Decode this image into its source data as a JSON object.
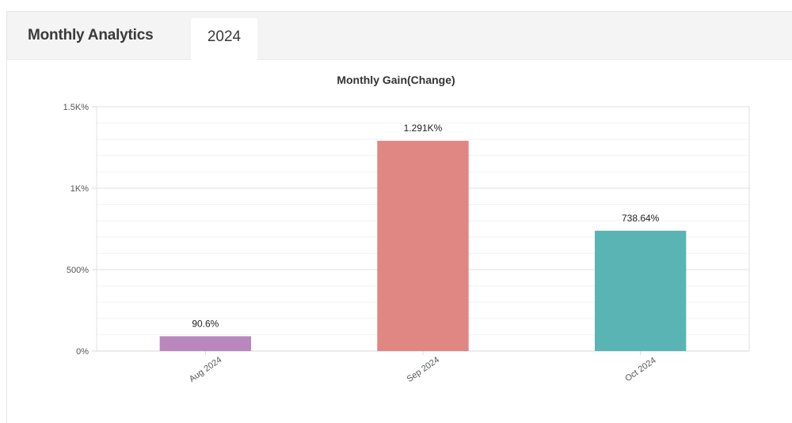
{
  "panel": {
    "title": "Monthly Analytics",
    "tabs": [
      {
        "label": "2024",
        "active": true
      }
    ]
  },
  "chart_data": {
    "type": "bar",
    "title": "Monthly Gain(Change)",
    "xlabel": "",
    "ylabel": "",
    "categories": [
      "Aug 2024",
      "Sep 2024",
      "Oct 2024"
    ],
    "values": [
      90.6,
      1291,
      738.64
    ],
    "value_labels": [
      "90.6%",
      "1.291K%",
      "738.64%"
    ],
    "colors": [
      "#b987bd",
      "#e08683",
      "#5ab4b3"
    ],
    "ylim": [
      0,
      1500
    ],
    "yticks": [
      0,
      500,
      1000,
      1500
    ],
    "ytick_labels": [
      "0%",
      "500%",
      "1K%",
      "1.5K%"
    ],
    "grid": true,
    "legend": "none"
  }
}
